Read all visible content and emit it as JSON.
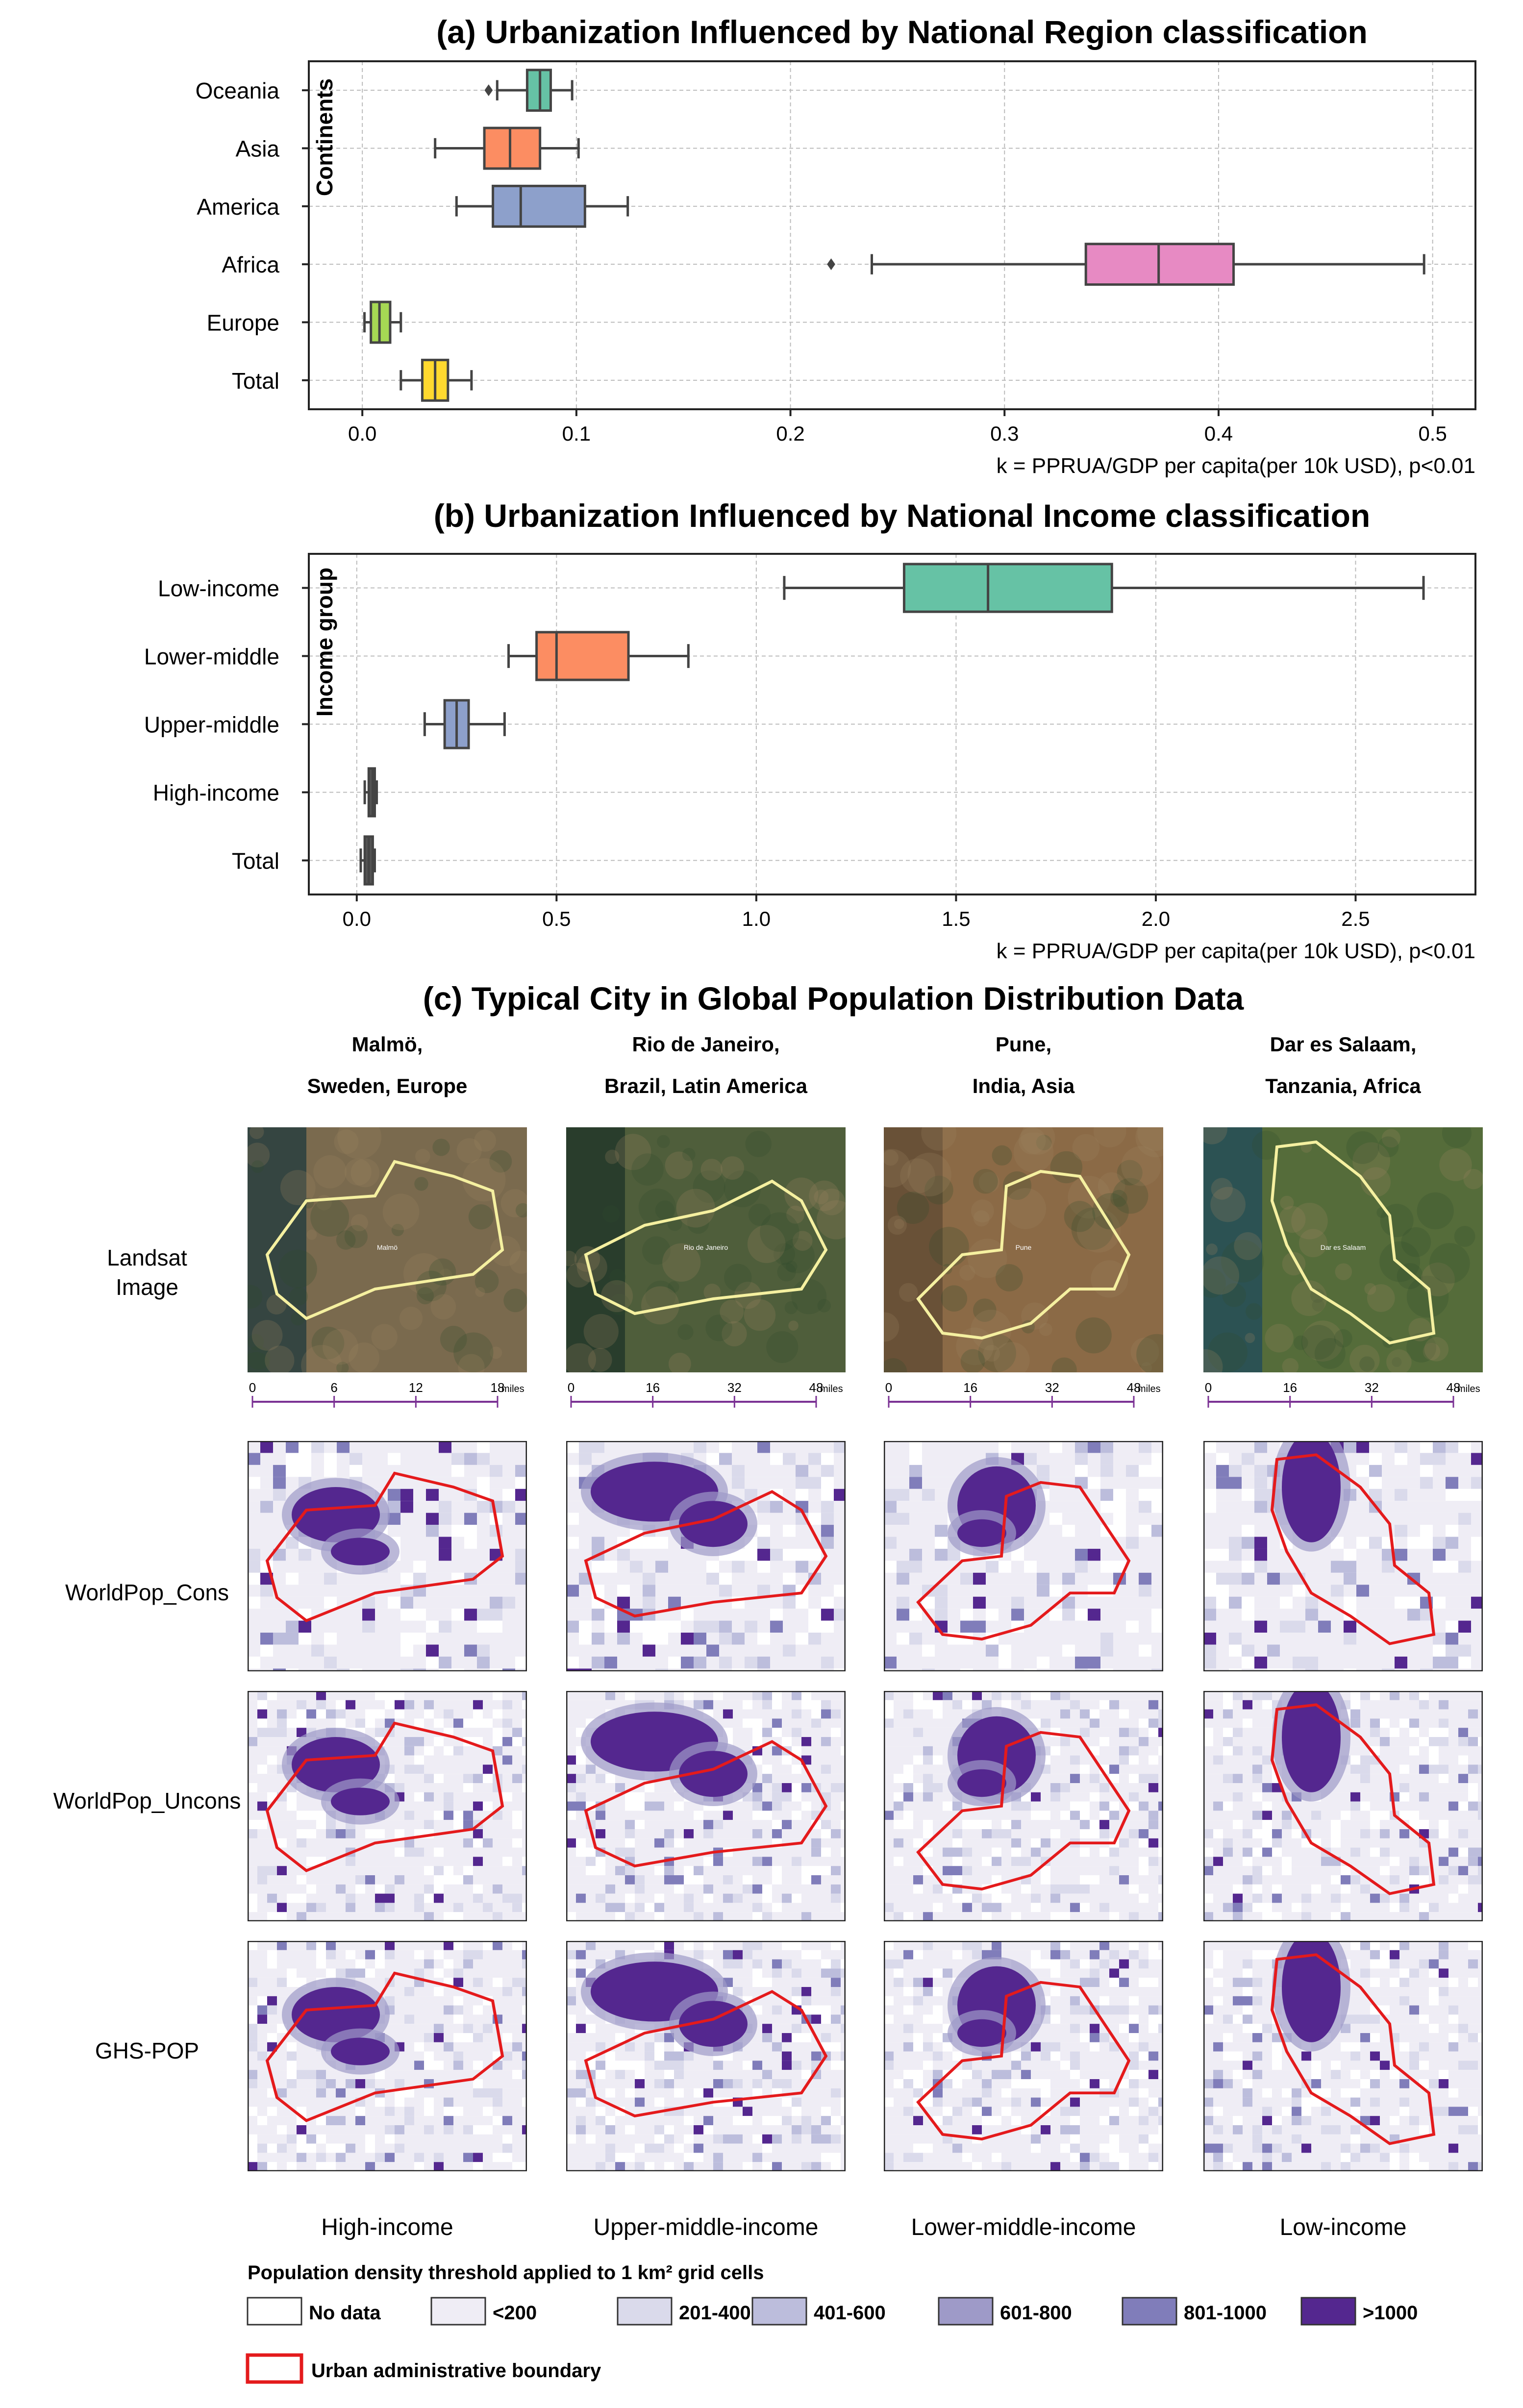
{
  "chart_data": [
    {
      "type": "boxplot",
      "orientation": "horizontal",
      "title": "(a) Urbanization Influenced by National Region classification",
      "ylabel": "Continents",
      "xlabel": "k = PPRUA/GDP per capita(per 10k USD), p<0.01",
      "xlim": [
        -0.025,
        0.52
      ],
      "xticks": [
        "0.0",
        "0.1",
        "0.2",
        "0.3",
        "0.4",
        "0.5"
      ],
      "xtick_values": [
        0,
        0.1,
        0.2,
        0.3,
        0.4,
        0.5
      ],
      "grid": true,
      "categories": [
        "Oceania",
        "Asia",
        "America",
        "Africa",
        "Europe",
        "Total"
      ],
      "boxes": [
        {
          "name": "Oceania",
          "whislo": 0.063,
          "q1": 0.077,
          "med": 0.083,
          "q3": 0.088,
          "whishi": 0.098,
          "fliers": [
            0.059
          ],
          "color": "#66c2a5"
        },
        {
          "name": "Asia",
          "whislo": 0.034,
          "q1": 0.057,
          "med": 0.069,
          "q3": 0.083,
          "whishi": 0.101,
          "fliers": [],
          "color": "#fc8d62"
        },
        {
          "name": "America",
          "whislo": 0.044,
          "q1": 0.061,
          "med": 0.074,
          "q3": 0.104,
          "whishi": 0.124,
          "fliers": [],
          "color": "#8da0cb"
        },
        {
          "name": "Africa",
          "whislo": 0.238,
          "q1": 0.338,
          "med": 0.372,
          "q3": 0.407,
          "whishi": 0.496,
          "fliers": [
            0.219
          ],
          "color": "#e78ac3"
        },
        {
          "name": "Europe",
          "whislo": 0.001,
          "q1": 0.004,
          "med": 0.008,
          "q3": 0.013,
          "whishi": 0.018,
          "fliers": [],
          "color": "#a6d854"
        },
        {
          "name": "Total",
          "whislo": 0.018,
          "q1": 0.028,
          "med": 0.034,
          "q3": 0.04,
          "whishi": 0.051,
          "fliers": [],
          "color": "#ffd92f"
        }
      ]
    },
    {
      "type": "boxplot",
      "orientation": "horizontal",
      "title": "(b) Urbanization Influenced by National Income classification",
      "ylabel": "Income group",
      "xlabel": "k = PPRUA/GDP per capita(per 10k USD), p<0.01",
      "xlim": [
        -0.12,
        2.8
      ],
      "xticks": [
        "0.0",
        "0.5",
        "1.0",
        "1.5",
        "2.0",
        "2.5"
      ],
      "xtick_values": [
        0,
        0.5,
        1.0,
        1.5,
        2.0,
        2.5
      ],
      "grid": true,
      "categories": [
        "Low-income",
        "Lower-middle",
        "Upper-middle",
        "High-income",
        "Total"
      ],
      "boxes": [
        {
          "name": "Low-income",
          "whislo": 1.07,
          "q1": 1.37,
          "med": 1.58,
          "q3": 1.89,
          "whishi": 2.67,
          "fliers": [],
          "color": "#66c2a5"
        },
        {
          "name": "Lower-middle",
          "whislo": 0.38,
          "q1": 0.45,
          "med": 0.5,
          "q3": 0.68,
          "whishi": 0.83,
          "fliers": [],
          "color": "#fc8d62"
        },
        {
          "name": "Upper-middle",
          "whislo": 0.17,
          "q1": 0.22,
          "med": 0.25,
          "q3": 0.28,
          "whishi": 0.37,
          "fliers": [],
          "color": "#8da0cb"
        },
        {
          "name": "High-income",
          "whislo": 0.02,
          "q1": 0.03,
          "med": 0.04,
          "q3": 0.045,
          "whishi": 0.05,
          "fliers": [],
          "color": "#555555"
        },
        {
          "name": "Total",
          "whislo": 0.01,
          "q1": 0.02,
          "med": 0.03,
          "q3": 0.04,
          "whishi": 0.045,
          "fliers": [],
          "color": "#555555"
        }
      ]
    }
  ],
  "section_c": {
    "title": "(c) Typical City in Global Population Distribution Data",
    "row_labels": [
      "Landsat\nImage",
      "WorldPop_Cons",
      "WorldPop_Uncons",
      "GHS-POP"
    ],
    "cities": [
      {
        "line1": "Malmö,",
        "line2": "Sweden, Europe",
        "sat_label": "Malmö",
        "income": "High-income",
        "scale": [
          "0",
          "6",
          "12",
          "18"
        ],
        "scale_unit": "miles",
        "sat_color": "#7a6a4e",
        "sat_edge": "#1f3a3e"
      },
      {
        "line1": "Rio de Janeiro,",
        "line2": "Brazil, Latin America",
        "sat_label": "Rio de Janeiro",
        "income": "Upper-middle-income",
        "scale": [
          "0",
          "16",
          "32",
          "48"
        ],
        "scale_unit": "miles",
        "sat_color": "#4f5e3b",
        "sat_edge": "#1c3328"
      },
      {
        "line1": "Pune,",
        "line2": "India, Asia",
        "sat_label": "Pune",
        "income": "Lower-middle-income",
        "scale": [
          "0",
          "16",
          "32",
          "48"
        ],
        "scale_unit": "miles",
        "sat_color": "#8b6a46",
        "sat_edge": "#5e4a33"
      },
      {
        "line1": "Dar es Salaam,",
        "line2": "Tanzania, Africa",
        "sat_label": "Dar es Salaam",
        "income": "Low-income",
        "scale": [
          "0",
          "16",
          "32",
          "48"
        ],
        "scale_unit": "miles",
        "sat_color": "#556c3a",
        "sat_edge": "#1f4a5c"
      }
    ],
    "legend": {
      "title": "Population density threshold applied to 1 km² grid cells",
      "items": [
        {
          "label": "No data",
          "color": "#ffffff"
        },
        {
          "label": "<200",
          "color": "#efedf5"
        },
        {
          "label": "201-400",
          "color": "#dadaeb"
        },
        {
          "label": "401-600",
          "color": "#bcbddc"
        },
        {
          "label": "601-800",
          "color": "#9e9ac8"
        },
        {
          "label": "801-1000",
          "color": "#807dba"
        },
        {
          "label": ">1000",
          "color": "#54278f"
        }
      ],
      "boundary_label": "Urban administrative boundary",
      "boundary_color": "#e41a1c"
    }
  }
}
